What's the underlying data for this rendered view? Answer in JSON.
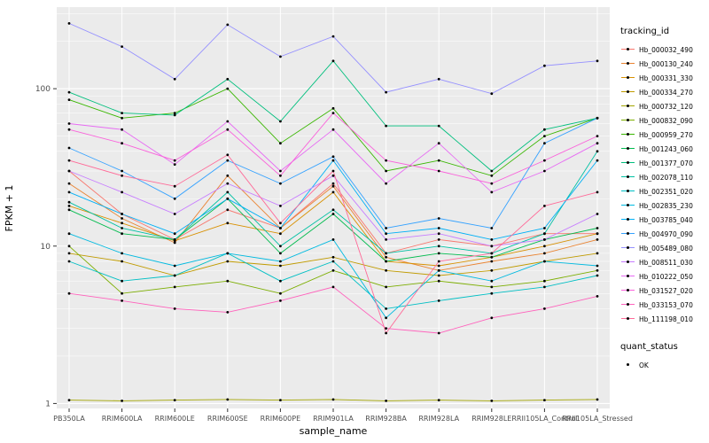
{
  "chart_data": {
    "type": "line",
    "title": "",
    "xlabel": "sample_name",
    "ylabel": "FPKM + 1",
    "y_scale": "log10",
    "y_ticks": [
      1,
      10,
      100
    ],
    "ylim": [
      0.93,
      330
    ],
    "grid": true,
    "panel_bg": "#EBEBEB",
    "grid_color": "#FFFFFF",
    "point_color": "#000000",
    "legend": {
      "position": "right",
      "tracking_title": "tracking_id",
      "quant_title": "quant_status",
      "quant_label": "OK"
    },
    "categories": [
      "PB350LA",
      "RRIM600LA",
      "RRIM600LE",
      "RRIM600SE",
      "RRIM600PE",
      "RRIM901LA",
      "RRIM928BA",
      "RRIM928LA",
      "RRIM928LE",
      "RRII105LA_Control",
      "RRII105LA_Stressed"
    ],
    "series": [
      {
        "name": "Hb_000032_490",
        "color": "#F8766D",
        "values": [
          30,
          16,
          11,
          17,
          13,
          25,
          9,
          11,
          10,
          12,
          12
        ]
      },
      {
        "name": "Hb_000130_240",
        "color": "#EA8331",
        "values": [
          25,
          15,
          10.5,
          28,
          13,
          24,
          8.5,
          7,
          8,
          9,
          11
        ]
      },
      {
        "name": "Hb_000331_330",
        "color": "#D89000",
        "values": [
          18,
          14,
          10.8,
          14,
          12,
          22,
          8,
          7.5,
          8.5,
          10,
          12
        ]
      },
      {
        "name": "Hb_000334_270",
        "color": "#C09B00",
        "values": [
          9,
          8,
          6.5,
          8,
          7.5,
          8.5,
          7,
          6.5,
          7,
          8,
          9
        ]
      },
      {
        "name": "Hb_000732_120",
        "color": "#A3A500",
        "values": [
          1.05,
          1.04,
          1.05,
          1.06,
          1.05,
          1.06,
          1.04,
          1.05,
          1.04,
          1.05,
          1.06
        ]
      },
      {
        "name": "Hb_000832_090",
        "color": "#7CAE00",
        "values": [
          10,
          5,
          5.5,
          6,
          5,
          7,
          5.5,
          6,
          5.5,
          6,
          7
        ]
      },
      {
        "name": "Hb_000959_270",
        "color": "#39B600",
        "values": [
          85,
          65,
          70,
          100,
          45,
          75,
          30,
          35,
          28,
          50,
          65
        ]
      },
      {
        "name": "Hb_001243_060",
        "color": "#00BB4E",
        "values": [
          17,
          12,
          11,
          20,
          9,
          16,
          8,
          9,
          8.5,
          11,
          13
        ]
      },
      {
        "name": "Hb_001377_070",
        "color": "#00BF7D",
        "values": [
          95,
          70,
          68,
          115,
          62,
          150,
          58,
          58,
          30,
          55,
          65
        ]
      },
      {
        "name": "Hb_002078_110",
        "color": "#00C1A3",
        "values": [
          19,
          13,
          11,
          22,
          10,
          17,
          9,
          10,
          9,
          12,
          40
        ]
      },
      {
        "name": "Hb_002351_020",
        "color": "#00BFC4",
        "values": [
          8,
          6,
          6.5,
          9,
          6,
          8,
          4,
          4.5,
          5,
          5.5,
          6.5
        ]
      },
      {
        "name": "Hb_002835_230",
        "color": "#00BAE0",
        "values": [
          12,
          9,
          7.5,
          9,
          8,
          11,
          3.5,
          7,
          6,
          8,
          7.5
        ]
      },
      {
        "name": "Hb_003785_040",
        "color": "#00B0F6",
        "values": [
          22,
          16,
          12,
          20,
          13,
          35,
          12,
          13,
          11,
          13,
          35
        ]
      },
      {
        "name": "Hb_004970_090",
        "color": "#35A2FF",
        "values": [
          42,
          30,
          20,
          35,
          25,
          37,
          13,
          15,
          13,
          45,
          65
        ]
      },
      {
        "name": "Hb_005489_080",
        "color": "#9590FF",
        "values": [
          260,
          185,
          115,
          255,
          160,
          215,
          95,
          115,
          93,
          140,
          150
        ]
      },
      {
        "name": "Hb_008511_030",
        "color": "#C77CFF",
        "values": [
          30,
          22,
          16,
          25,
          18,
          28,
          11,
          12,
          10,
          11,
          16
        ]
      },
      {
        "name": "Hb_010222_050",
        "color": "#E76BF3",
        "values": [
          60,
          55,
          33,
          62,
          30,
          55,
          25,
          45,
          22,
          30,
          45
        ]
      },
      {
        "name": "Hb_031527_020",
        "color": "#FA62DB",
        "values": [
          55,
          45,
          35,
          55,
          28,
          70,
          35,
          30,
          25,
          35,
          50
        ]
      },
      {
        "name": "Hb_033153_070",
        "color": "#FF62BC",
        "values": [
          5,
          4.5,
          4,
          3.8,
          4.5,
          5.5,
          3,
          2.8,
          3.5,
          4,
          4.8
        ]
      },
      {
        "name": "Hb_111198_010",
        "color": "#FF6A98",
        "values": [
          35,
          28,
          24,
          38,
          14,
          30,
          2.8,
          8,
          9,
          18,
          22
        ]
      }
    ]
  }
}
